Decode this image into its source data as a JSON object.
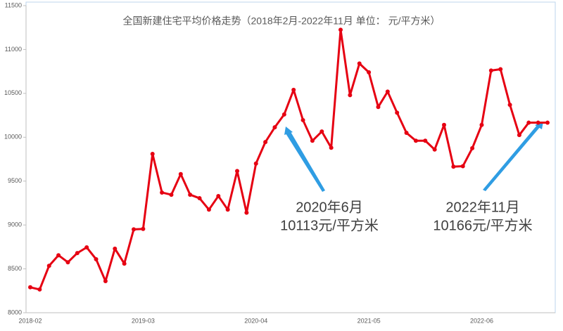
{
  "chart_data": {
    "type": "line",
    "title": "全国新建住宅平均价格走势（2018年2月-2022年11月   单位：  元/平方米）",
    "categories": [
      "2018-02",
      null,
      null,
      null,
      null,
      null,
      null,
      null,
      null,
      null,
      null,
      null,
      "2019-03",
      null,
      null,
      null,
      null,
      null,
      null,
      null,
      null,
      null,
      null,
      null,
      "2020-04",
      null,
      null,
      null,
      null,
      null,
      null,
      null,
      null,
      null,
      null,
      null,
      "2021-05",
      null,
      null,
      null,
      null,
      null,
      null,
      null,
      null,
      null,
      null,
      null,
      "2022-06",
      null,
      null,
      null,
      null,
      null,
      null,
      null
    ],
    "series": [
      {
        "name": "全国新建住宅平均价格",
        "color": "#e60012",
        "values": [
          8290,
          8265,
          8535,
          8655,
          8575,
          8680,
          8745,
          8610,
          8360,
          8730,
          8560,
          8950,
          8955,
          9810,
          9370,
          9345,
          9580,
          9345,
          9305,
          9175,
          9330,
          9175,
          9615,
          9140,
          9700,
          9945,
          10113,
          10260,
          10540,
          10195,
          9960,
          10065,
          9880,
          11225,
          10480,
          10840,
          10740,
          10345,
          10520,
          10280,
          10050,
          9960,
          9960,
          9860,
          10140,
          9665,
          9670,
          9875,
          10140,
          10760,
          10775,
          10370,
          10025,
          10166,
          10166,
          10166
        ]
      }
    ],
    "ylim": [
      8000,
      11500
    ],
    "yticks": [
      8000,
      8500,
      9000,
      9500,
      10000,
      10500,
      11000,
      11500
    ],
    "annotations": [
      [
        "2020年6月",
        "10113元/平方米"
      ],
      [
        "2022年11月",
        "10166元/平方米"
      ]
    ]
  }
}
